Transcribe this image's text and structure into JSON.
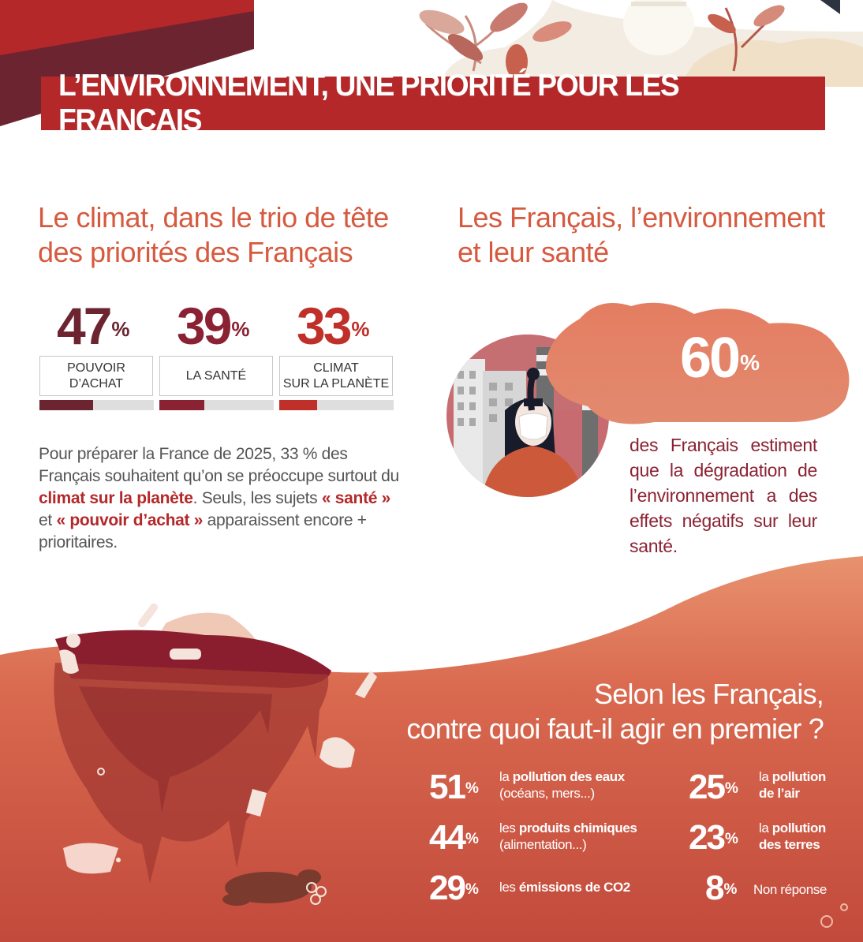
{
  "banner": {
    "title": "L’ENVIRONNEMENT, UNE PRIORITÉ POUR LES FRANÇAIS"
  },
  "left": {
    "title_line1": "Le climat, dans le trio de tête",
    "title_line2": "des priorités des Français",
    "stats": [
      {
        "value": "47",
        "unit": "%",
        "label_line1": "POUVOIR",
        "label_line2": "D’ACHAT",
        "share": 47,
        "color": "#6b2430"
      },
      {
        "value": "39",
        "unit": "%",
        "label_line1": "LA SANTÉ",
        "label_line2": "",
        "share": 39,
        "color": "#8b2233"
      },
      {
        "value": "33",
        "unit": "%",
        "label_line1": "CLIMAT",
        "label_line2": "SUR LA PLANÈTE",
        "share": 33,
        "color": "#c0302a"
      }
    ],
    "paragraph": {
      "p1": "Pour préparer la France de 2025, 33 % des Français souhaitent qu’on se préoccupe surtout du ",
      "p1b": "climat sur la planète",
      "p2": ". Seuls, les sujets ",
      "p2b": "« santé »",
      "p3": " et ",
      "p3b": "« pouvoir d’achat »",
      "p4": " apparaissent encore + prioritaires."
    }
  },
  "right": {
    "title_line1": "Les Français, l’environnement",
    "title_line2": "et leur santé",
    "big_value": "60",
    "big_unit": "%",
    "description": "des Français estiment que la dégradation de l’environnement a des effets négatifs sur leur santé."
  },
  "bottom": {
    "title_line1": "Selon les Français,",
    "title_line2": "contre quoi faut-il agir en premier ?",
    "items": [
      {
        "value": "51",
        "unit": "%",
        "pre": "la ",
        "bold": "pollution des eaux",
        "post": "",
        "line2": "(océans, mers...)",
        "line2_bold": ""
      },
      {
        "value": "25",
        "unit": "%",
        "pre": "la ",
        "bold": "pollution",
        "post": "",
        "line2": "",
        "line2_bold": "de l’air"
      },
      {
        "value": "44",
        "unit": "%",
        "pre": "les ",
        "bold": "produits chimiques",
        "post": "",
        "line2": "(alimentation...)",
        "line2_bold": ""
      },
      {
        "value": "23",
        "unit": "%",
        "pre": "la ",
        "bold": "pollution",
        "post": "",
        "line2": "",
        "line2_bold": "des terres"
      },
      {
        "value": "29",
        "unit": "%",
        "pre": "les ",
        "bold": "émissions de CO2",
        "post": "",
        "line2": "",
        "line2_bold": ""
      },
      {
        "value": "8",
        "unit": "%",
        "pre": "Non réponse",
        "bold": "",
        "post": "",
        "line2": "",
        "line2_bold": ""
      }
    ]
  },
  "colors": {
    "banner": "#b4282a",
    "heading": "#d65a3f",
    "accent_dark": "#8b2233",
    "wave_top": "#e8926e",
    "wave_bottom": "#c7503e"
  }
}
